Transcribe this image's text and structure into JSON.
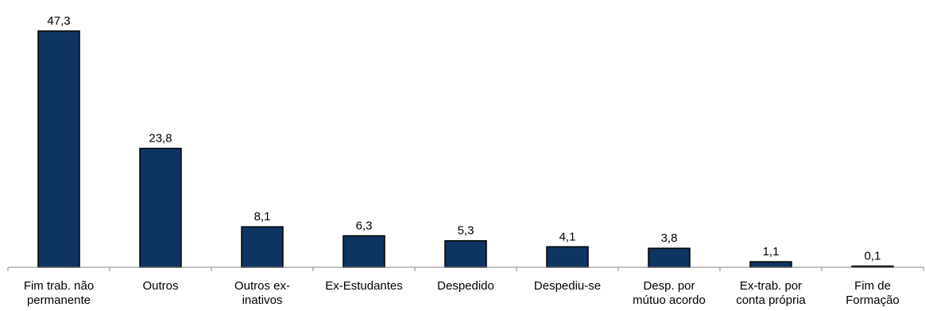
{
  "chart_data": {
    "type": "bar",
    "categories": [
      [
        "Fim trab. não",
        "permanente"
      ],
      [
        "Outros"
      ],
      [
        "Outros ex-",
        "inativos"
      ],
      [
        "Ex-Estudantes"
      ],
      [
        "Despedido"
      ],
      [
        "Despediu-se"
      ],
      [
        "Desp. por",
        "mútuo acordo"
      ],
      [
        "Ex-trab. por",
        "conta própria"
      ],
      [
        "Fim de",
        "Formação"
      ]
    ],
    "values": [
      47.3,
      23.8,
      8.1,
      6.3,
      5.3,
      4.1,
      3.8,
      1.1,
      0.1
    ],
    "data_labels": [
      "47,3",
      "23,8",
      "8,1",
      "6,3",
      "5,3",
      "4,1",
      "3,8",
      "1,1",
      "0,1"
    ],
    "ylim": [
      0,
      47.3
    ],
    "bar_color": "#0e3461",
    "grid": false,
    "legend": false
  }
}
